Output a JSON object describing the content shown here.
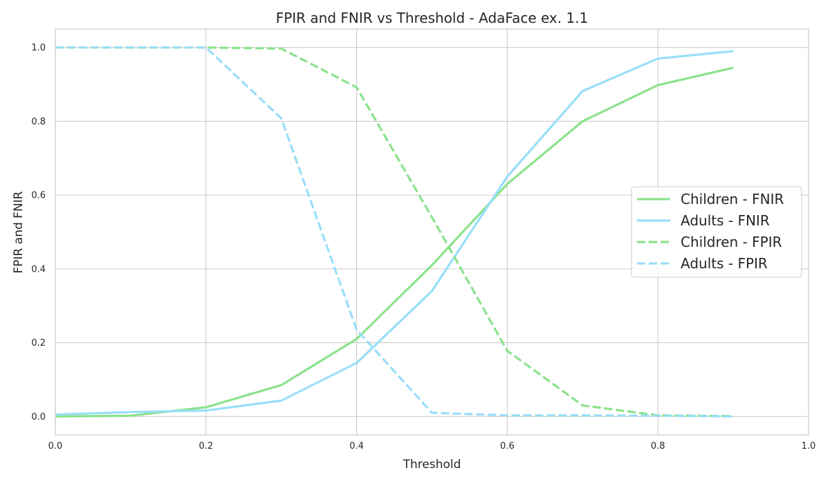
{
  "chart_data": {
    "type": "line",
    "title": "FPIR and FNIR vs Threshold - AdaFace ex. 1.1",
    "xlabel": "Threshold",
    "ylabel": "FPIR and FNIR",
    "xlim": [
      0.0,
      1.0
    ],
    "ylim": [
      -0.05,
      1.05
    ],
    "xticks": [
      0.0,
      0.2,
      0.4,
      0.6,
      0.8,
      1.0
    ],
    "yticks": [
      0.0,
      0.2,
      0.4,
      0.6,
      0.8,
      1.0
    ],
    "x": [
      0.0,
      0.1,
      0.2,
      0.3,
      0.4,
      0.5,
      0.6,
      0.7,
      0.8,
      0.9
    ],
    "grid": true,
    "legend_position": "center-right",
    "series": [
      {
        "name": "Children - FNIR",
        "color": "#8be28b",
        "dash": "solid",
        "values": [
          0.0,
          0.002,
          0.025,
          0.085,
          0.21,
          0.41,
          0.63,
          0.8,
          0.898,
          0.945
        ]
      },
      {
        "name": "Adults - FNIR",
        "color": "#98def8",
        "dash": "solid",
        "values": [
          0.005,
          0.012,
          0.016,
          0.043,
          0.145,
          0.34,
          0.65,
          0.882,
          0.97,
          0.99
        ]
      },
      {
        "name": "Children - FPIR",
        "color": "#8be28b",
        "dash": "dashed",
        "values": [
          1.0,
          1.0,
          1.0,
          0.997,
          0.892,
          0.54,
          0.178,
          0.03,
          0.003,
          0.001
        ]
      },
      {
        "name": "Adults - FPIR",
        "color": "#98def8",
        "dash": "dashed",
        "values": [
          1.0,
          1.0,
          1.0,
          0.808,
          0.235,
          0.01,
          0.003,
          0.003,
          0.002,
          0.0
        ]
      }
    ]
  }
}
